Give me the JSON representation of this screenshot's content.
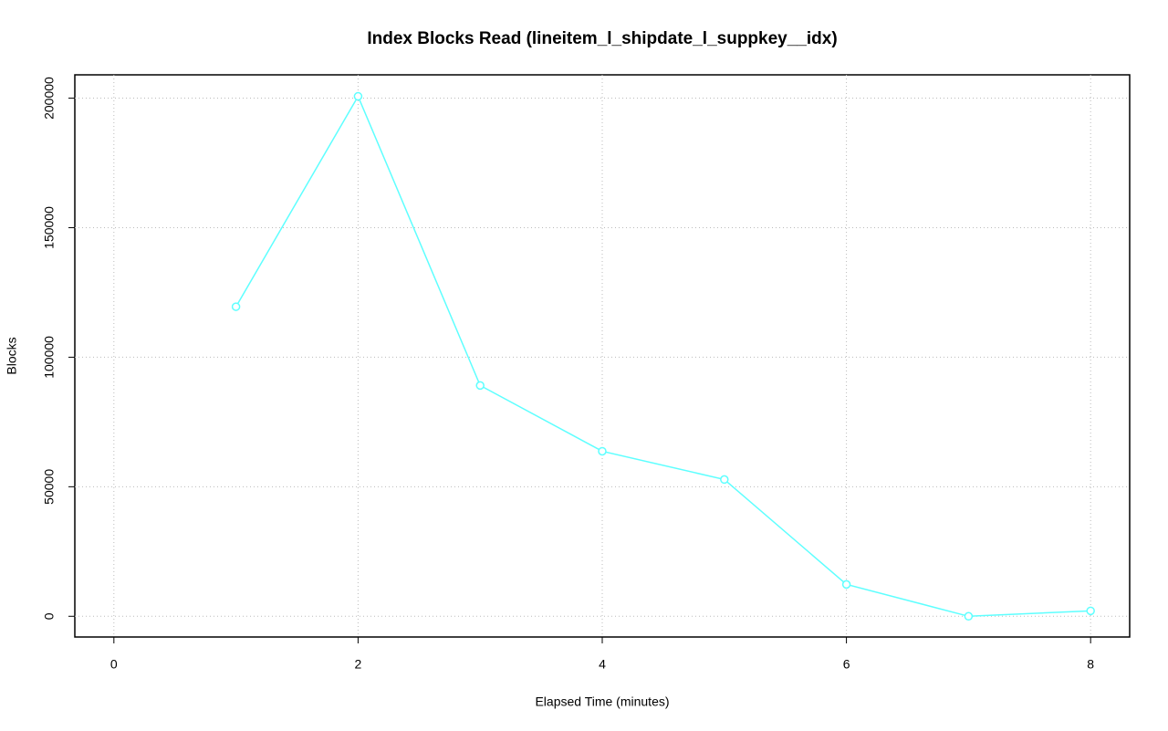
{
  "chart_data": {
    "type": "line",
    "title": "Index Blocks Read (lineitem_l_shipdate_l_suppkey__idx)",
    "x_label": "Elapsed Time (minutes)",
    "y_label": "Blocks",
    "x": [
      1,
      2,
      3,
      4,
      5,
      6,
      7,
      8
    ],
    "series": [
      {
        "name": "lineitem_l_shipdate_l_suppkey__idx",
        "color": "#5effff",
        "values": [
          119500,
          200700,
          89100,
          63700,
          52800,
          12300,
          0,
          2100
        ]
      }
    ],
    "xlim": [
      -0.32,
      8.32
    ],
    "xticks": [
      0,
      2,
      4,
      6,
      8
    ],
    "ylim": [
      -8000,
      209000
    ],
    "yticks": [
      0,
      50000,
      100000,
      150000,
      200000
    ],
    "grid": true
  }
}
